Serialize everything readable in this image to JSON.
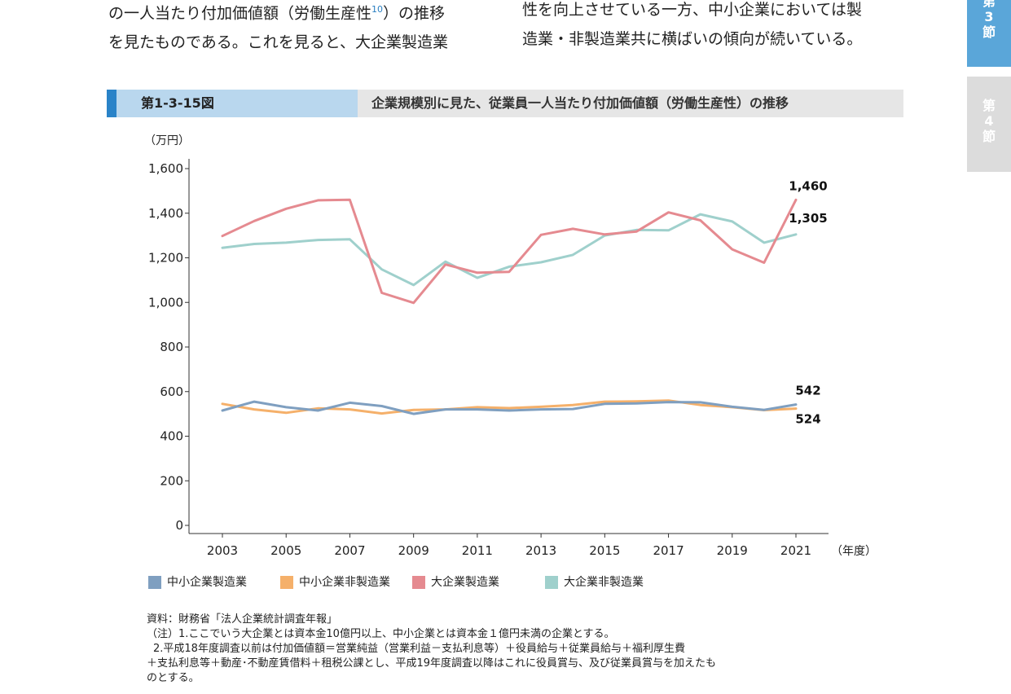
{
  "intro": {
    "left_line1": "の一人当たり付加価値額（労働生産性",
    "left_footnote": "10",
    "left_line1_tail": "）の推移",
    "left_line2": "を見たものである。これを見ると、大企業製造業",
    "right_line1": "性を向上させている一方、中小企業においては製",
    "right_line2": "造業・非製造業共に横ばいの傾向が続いている。"
  },
  "side_tabs": {
    "active": [
      "第",
      "3",
      "節"
    ],
    "inactive": [
      "第",
      "4",
      "節"
    ]
  },
  "figure": {
    "number": "第1-3-15図",
    "title": "企業規模別に見た、従業員一人当たり付加価値額（労働生産性）の推移"
  },
  "chart_data": {
    "type": "line",
    "unit_label": "（万円）",
    "x_unit_label": "（年度）",
    "x": [
      2003,
      2004,
      2005,
      2006,
      2007,
      2008,
      2009,
      2010,
      2011,
      2012,
      2013,
      2014,
      2015,
      2016,
      2017,
      2018,
      2019,
      2020,
      2021
    ],
    "x_tick_labels": [
      "2003",
      "2005",
      "2007",
      "2009",
      "2011",
      "2013",
      "2015",
      "2017",
      "2019",
      "2021"
    ],
    "ylim": [
      0,
      1600
    ],
    "y_tick_labels": [
      "0",
      "200",
      "400",
      "600",
      "800",
      "1,000",
      "1,200",
      "1,400",
      "1,600"
    ],
    "grid": false,
    "legend_position": "bottom",
    "series": [
      {
        "name": "中小企業製造業",
        "color": "#7f9fc0",
        "values": [
          515,
          555,
          530,
          515,
          550,
          535,
          500,
          520,
          520,
          515,
          520,
          522,
          545,
          547,
          553,
          552,
          532,
          518,
          542
        ]
      },
      {
        "name": "中小企業非製造業",
        "color": "#f5b06a",
        "values": [
          545,
          520,
          505,
          525,
          520,
          502,
          518,
          520,
          530,
          526,
          532,
          540,
          555,
          556,
          560,
          540,
          530,
          517,
          524
        ]
      },
      {
        "name": "大企業製造業",
        "color": "#e58a90",
        "values": [
          1298,
          1365,
          1420,
          1458,
          1460,
          1043,
          998,
          1170,
          1133,
          1137,
          1303,
          1330,
          1305,
          1318,
          1404,
          1368,
          1238,
          1178,
          1460
        ]
      },
      {
        "name": "大企業非製造業",
        "color": "#9fd0cc",
        "values": [
          1245,
          1262,
          1268,
          1280,
          1283,
          1148,
          1078,
          1183,
          1110,
          1160,
          1180,
          1213,
          1300,
          1325,
          1323,
          1395,
          1363,
          1268,
          1305
        ]
      }
    ],
    "end_labels": [
      {
        "series": "大企業製造業",
        "text": "1,460"
      },
      {
        "series": "大企業非製造業",
        "text": "1,305"
      },
      {
        "series": "中小企業製造業",
        "text": "542"
      },
      {
        "series": "中小企業非製造業",
        "text": "524"
      }
    ]
  },
  "notes": {
    "source": "資料：財務省「法人企業統計調査年報」",
    "note1": "（注）1.ここでいう大企業とは資本金10億円以上、中小企業とは資本金１億円未満の企業とする。",
    "note2_line1": "2.平成18年度調査以前は付加価値額＝営業純益（営業利益－支払利息等）＋役員給与＋従業員給与＋福利厚生費",
    "note2_line2": "＋支払利息等＋動産･不動産賃借料＋租税公課とし、平成19年度調査以降はこれに役員賞与、及び従業員賞与を加えたも",
    "note2_line3": "のとする。"
  }
}
